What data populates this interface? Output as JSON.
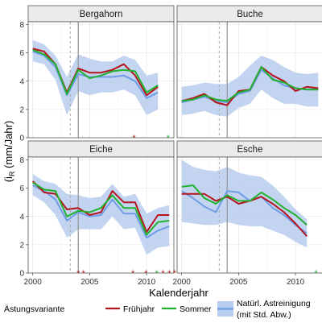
{
  "figure": {
    "ylabel": "(iʀ (mm/Jahr)",
    "ylabel_main": "(i",
    "ylabel_sub": "R",
    "ylabel_rest": " (mm/Jahr)",
    "xlabel": "Kalenderjahr",
    "colors": {
      "band": "#b8cdef",
      "reference": "#6f9ce6",
      "fruehjahr": "#b5141c",
      "sommer": "#20b22e",
      "panel_bg": "#ffffff",
      "strip_bg": "#ebebeb",
      "grid": "#e3e3e3",
      "border": "#555555",
      "vline_dashed": "#aaaaaa",
      "vline_solid": "#999999"
    }
  },
  "legend": {
    "title": "Ästungsvariante",
    "fruehjahr": "Frühjahr",
    "sommer": "Sommer",
    "reference_line1": "Natürl. Astreinigung",
    "reference_line2": "(mit Std. Abw.)"
  },
  "chart_data": [
    {
      "type": "line",
      "panel": "Bergahorn",
      "x": [
        2000,
        2001,
        2002,
        2003,
        2004,
        2005,
        2006,
        2007,
        2008,
        2009,
        2010,
        2011
      ],
      "vlines": {
        "dashed": 2003.3,
        "solid": 2004.0
      },
      "band_upper": [
        6.9,
        6.6,
        5.8,
        4.3,
        5.9,
        5.6,
        5.4,
        5.4,
        5.8,
        5.5,
        4.4,
        4.6
      ],
      "band_lower": [
        5.4,
        5.2,
        4.1,
        1.6,
        3.3,
        3.0,
        3.2,
        3.2,
        3.4,
        3.0,
        1.6,
        2.0
      ],
      "series": [
        {
          "name": "Natürl. Astreinigung",
          "values": [
            6.1,
            5.8,
            5.0,
            3.0,
            4.5,
            4.3,
            4.3,
            4.3,
            4.4,
            4.0,
            2.8,
            3.2
          ]
        },
        {
          "name": "Frühjahr",
          "values": [
            6.3,
            6.1,
            5.2,
            3.2,
            4.9,
            4.6,
            4.6,
            4.8,
            5.2,
            4.4,
            3.0,
            3.6
          ]
        },
        {
          "name": "Sommer",
          "values": [
            6.2,
            5.9,
            5.2,
            3.1,
            4.8,
            4.2,
            4.4,
            4.7,
            4.8,
            4.7,
            3.2,
            3.7
          ]
        }
      ],
      "markers": [
        {
          "x": 2008.9,
          "series": "Frühjahr"
        },
        {
          "x": 2011.9,
          "series": "Sommer"
        }
      ],
      "xticks": [
        2000,
        2005,
        2010
      ],
      "yticks": [
        0,
        2,
        4,
        6,
        8
      ],
      "ylim": [
        0,
        8.2
      ],
      "xlim": [
        1999.6,
        2012.4
      ]
    },
    {
      "type": "line",
      "panel": "Buche",
      "x": [
        2000,
        2001,
        2002,
        2003,
        2004,
        2005,
        2006,
        2007,
        2008,
        2009,
        2010,
        2011,
        2012
      ],
      "vlines": {
        "dashed": 2003.3,
        "solid": 2004.0
      },
      "band_upper": [
        3.6,
        3.7,
        3.9,
        3.8,
        3.8,
        4.3,
        5.1,
        5.8,
        5.5,
        5.0,
        4.6,
        4.5,
        4.6
      ],
      "band_lower": [
        1.6,
        1.7,
        1.9,
        1.6,
        1.5,
        2.1,
        2.4,
        3.4,
        2.8,
        2.4,
        2.4,
        2.2,
        2.2
      ],
      "series": [
        {
          "name": "Natürl. Astreinigung",
          "values": [
            2.5,
            2.7,
            2.9,
            2.6,
            2.5,
            3.1,
            3.3,
            4.8,
            4.2,
            3.7,
            3.5,
            3.4,
            3.5
          ]
        },
        {
          "name": "Frühjahr",
          "values": [
            2.6,
            2.8,
            3.1,
            2.5,
            2.3,
            3.3,
            3.4,
            5.0,
            4.4,
            4.0,
            3.3,
            3.6,
            3.5
          ]
        },
        {
          "name": "Sommer",
          "values": [
            2.6,
            2.7,
            3.0,
            2.7,
            2.6,
            3.2,
            3.4,
            5.0,
            4.1,
            3.9,
            3.5,
            3.4,
            3.4
          ]
        }
      ],
      "markers": [],
      "xticks": [
        2000,
        2005,
        2010
      ],
      "yticks": [
        0,
        2,
        4,
        6,
        8
      ],
      "ylim": [
        0,
        8.2
      ],
      "xlim": [
        1999.6,
        2012.4
      ]
    },
    {
      "type": "line",
      "panel": "Eiche",
      "x": [
        2000,
        2001,
        2002,
        2003,
        2004,
        2005,
        2006,
        2007,
        2008,
        2009,
        2010,
        2011,
        2012
      ],
      "vlines": {
        "dashed": 2003.3,
        "solid": 2004.0
      },
      "band_upper": [
        7.0,
        6.5,
        6.3,
        5.6,
        5.5,
        5.3,
        5.4,
        6.3,
        5.4,
        5.6,
        4.2,
        4.6,
        4.8
      ],
      "band_lower": [
        5.5,
        5.0,
        4.1,
        2.5,
        3.1,
        3.1,
        3.1,
        4.0,
        3.1,
        3.2,
        1.3,
        1.8,
        1.9
      ],
      "series": [
        {
          "name": "Natürl. Astreinigung",
          "values": [
            6.2,
            5.8,
            5.2,
            3.7,
            4.3,
            4.0,
            4.1,
            5.2,
            4.2,
            4.2,
            2.5,
            3.0,
            3.3
          ]
        },
        {
          "name": "Frühjahr",
          "values": [
            6.5,
            5.7,
            5.6,
            4.5,
            4.6,
            4.1,
            4.3,
            5.8,
            5.0,
            5.0,
            2.9,
            4.1,
            4.1
          ]
        },
        {
          "name": "Sommer",
          "values": [
            6.4,
            5.9,
            5.8,
            4.0,
            4.4,
            4.3,
            4.6,
            5.5,
            4.6,
            4.6,
            2.7,
            3.6,
            3.7
          ]
        }
      ],
      "markers": [
        {
          "x": 2004.0,
          "series": "Frühjahr"
        },
        {
          "x": 2004.45,
          "series": "Frühjahr"
        },
        {
          "x": 2008.8,
          "series": "Frühjahr"
        },
        {
          "x": 2009.95,
          "series": "Frühjahr"
        },
        {
          "x": 2010.9,
          "series": "Sommer"
        },
        {
          "x": 2011.45,
          "series": "Frühjahr"
        },
        {
          "x": 2012.0,
          "series": "Frühjahr"
        },
        {
          "x": 2012.45,
          "series": "Frühjahr"
        }
      ],
      "xticks": [
        2000,
        2005,
        2010
      ],
      "yticks": [
        0,
        2,
        4,
        6,
        8
      ],
      "ylim": [
        0,
        8.2
      ],
      "xlim": [
        1999.6,
        2012.4
      ]
    },
    {
      "type": "line",
      "panel": "Esche",
      "x": [
        2000,
        2001,
        2002,
        2003,
        2004,
        2005,
        2006,
        2007,
        2008,
        2009,
        2010,
        2011
      ],
      "vlines": {
        "dashed": 2003.3,
        "solid": 2004.0
      },
      "band_upper": [
        8.0,
        7.5,
        7.3,
        7.2,
        7.5,
        7.1,
        6.9,
        6.8,
        6.2,
        5.4,
        4.5,
        3.8
      ],
      "band_lower": [
        3.6,
        3.5,
        3.4,
        3.4,
        3.6,
        3.4,
        3.3,
        3.3,
        3.0,
        2.7,
        2.2,
        1.8
      ],
      "series": [
        {
          "name": "Natürl. Astreinigung",
          "values": [
            5.8,
            5.3,
            4.7,
            4.3,
            5.8,
            5.7,
            5.1,
            5.4,
            4.6,
            4.1,
            3.4,
            2.8
          ]
        },
        {
          "name": "Frühjahr",
          "values": [
            5.6,
            5.6,
            5.6,
            5.1,
            5.4,
            4.9,
            5.1,
            5.4,
            4.9,
            4.3,
            3.5,
            2.6
          ]
        },
        {
          "name": "Sommer",
          "values": [
            6.1,
            6.2,
            5.3,
            4.9,
            5.5,
            5.1,
            5.1,
            5.7,
            5.2,
            4.6,
            4.1,
            3.4
          ]
        }
      ],
      "markers": [
        {
          "x": 2011.8,
          "series": "Sommer"
        }
      ],
      "xticks": [
        2000,
        2005,
        2010
      ],
      "yticks": [
        0,
        2,
        4,
        6,
        8
      ],
      "ylim": [
        0,
        8.2
      ],
      "xlim": [
        1999.6,
        2012.4
      ]
    }
  ]
}
